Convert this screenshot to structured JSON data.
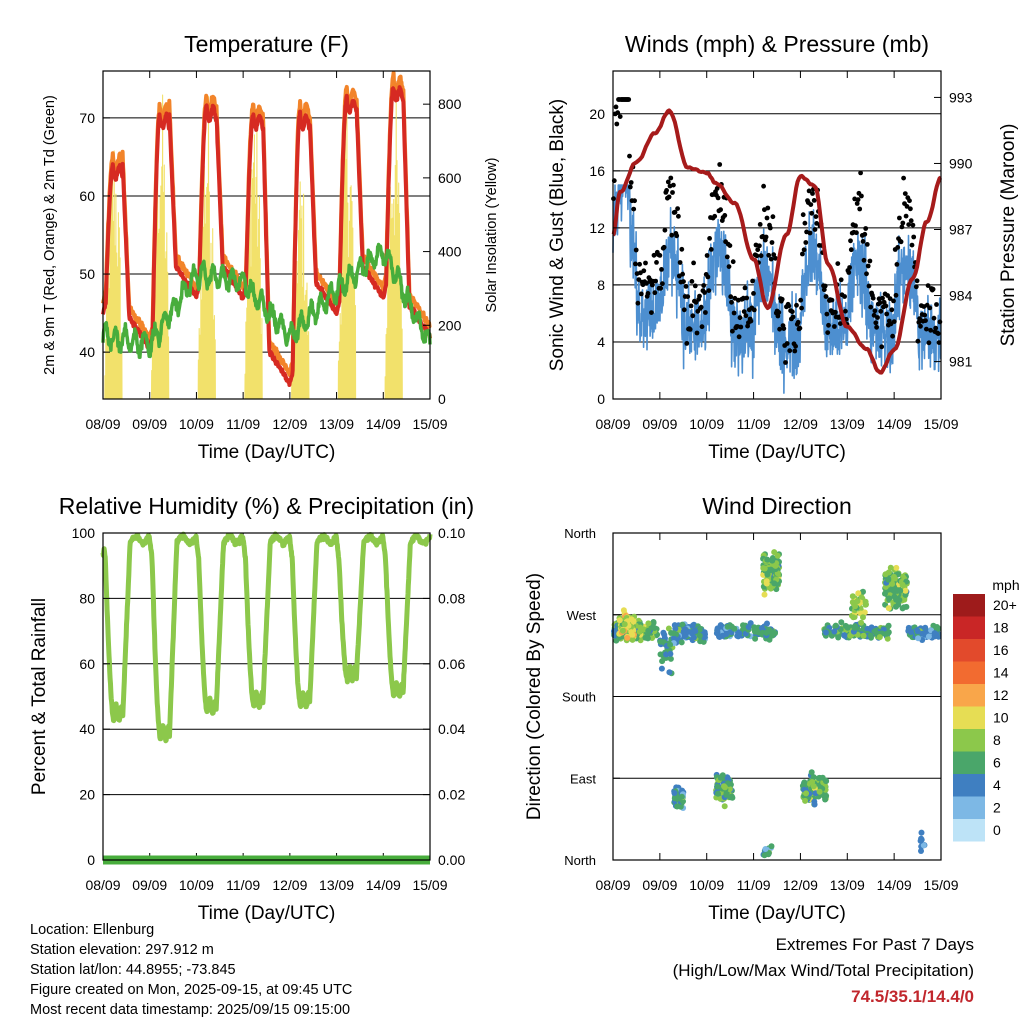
{
  "charts": [
    {
      "type": "line",
      "title": "Temperature (F)",
      "xlabel": "Time (Day/UTC)",
      "ylabel": "2m & 9m T (Red, Orange) & 2m Td (Green)",
      "ylabel_right": "Solar Insolation (Yellow)",
      "x_ticks": [
        "08/09",
        "09/09",
        "10/09",
        "11/09",
        "12/09",
        "13/09",
        "14/09",
        "15/09"
      ],
      "y_ticks": [
        "40",
        "50",
        "60",
        "70"
      ],
      "y2_ticks": [
        "0",
        "200",
        "400",
        "600",
        "800"
      ],
      "ylim": [
        34,
        76
      ],
      "y2lim": [
        0,
        890
      ],
      "xlim": [
        0,
        7
      ],
      "grid_y": [
        40,
        50,
        60,
        70
      ],
      "colors": {
        "t2m": "#d62a22",
        "t9m": "#f2842a",
        "td": "#48ad3c",
        "solar": "#f2e16b"
      }
    },
    {
      "type": "line",
      "title": "Winds (mph) & Pressure (mb)",
      "xlabel": "Time (Day/UTC)",
      "ylabel": "Sonic Wind & Gust (Blue, Black)",
      "ylabel_right": "Station Pressure (Maroon)",
      "x_ticks": [
        "08/09",
        "09/09",
        "10/09",
        "11/09",
        "12/09",
        "13/09",
        "14/09",
        "15/09"
      ],
      "y_ticks": [
        "0",
        "4",
        "8",
        "12",
        "16",
        "20"
      ],
      "y2_ticks": [
        "981",
        "984",
        "987",
        "990",
        "993"
      ],
      "ylim": [
        0,
        23
      ],
      "y2lim": [
        979.3,
        994.2
      ],
      "xlim": [
        0,
        7
      ],
      "grid_y": [
        4,
        8,
        12,
        16,
        20
      ],
      "colors": {
        "wind": "#4d8fd0",
        "gust": "#000000",
        "pressure": "#a61b1b"
      }
    },
    {
      "type": "line",
      "title": "Relative Humidity (%) & Precipitation (in)",
      "xlabel": "Time (Day/UTC)",
      "ylabel": "Percent & Total Rainfall",
      "x_ticks": [
        "08/09",
        "09/09",
        "10/09",
        "11/09",
        "12/09",
        "13/09",
        "14/09",
        "15/09"
      ],
      "y_ticks": [
        "0",
        "20",
        "40",
        "60",
        "80",
        "100"
      ],
      "y2_ticks": [
        "0.00",
        "0.02",
        "0.04",
        "0.06",
        "0.08",
        "0.10"
      ],
      "ylim": [
        0,
        100
      ],
      "y2lim": [
        0,
        0.1
      ],
      "xlim": [
        0,
        7
      ],
      "grid_y": [
        20,
        40,
        60,
        80
      ],
      "colors": {
        "rh": "#8cc84b",
        "precip": "#48ad3c"
      }
    },
    {
      "type": "scatter",
      "title": "Wind Direction",
      "xlabel": "Time (Day/UTC)",
      "ylabel": "Direction (Colored By Speed)",
      "x_ticks": [
        "08/09",
        "09/09",
        "10/09",
        "11/09",
        "12/09",
        "13/09",
        "14/09",
        "15/09"
      ],
      "y_ticks": [
        "North",
        "East",
        "South",
        "West",
        "North"
      ],
      "ylim": [
        0,
        360
      ],
      "xlim": [
        0,
        7
      ],
      "grid_y": [
        90,
        180,
        270
      ],
      "legend": {
        "title": "mph",
        "labels": [
          "20+",
          "18",
          "16",
          "14",
          "12",
          "10",
          "8",
          "6",
          "4",
          "2",
          "0"
        ],
        "colors": [
          "#9e1b1b",
          "#c92626",
          "#e24a2c",
          "#f26b30",
          "#f9a64a",
          "#e6dd54",
          "#8cc84b",
          "#4aa66a",
          "#3f7fc1",
          "#7db8e5",
          "#bde3f7"
        ]
      }
    }
  ],
  "info": {
    "location": "Location: Ellenburg",
    "elevation": "Station elevation: 297.912 m",
    "latlon": "Station lat/lon: 44.8955; -73.845",
    "created": "Figure created on Mon, 2025-09-15, at 09:45 UTC",
    "recent": "Most recent data timestamp: 2025/09/15 09:15:00"
  },
  "extremes": {
    "line1": "Extremes For Past 7 Days",
    "line2": "(High/Low/Max Wind/Total Precipitation)",
    "values": "74.5/35.1/14.4/0"
  }
}
